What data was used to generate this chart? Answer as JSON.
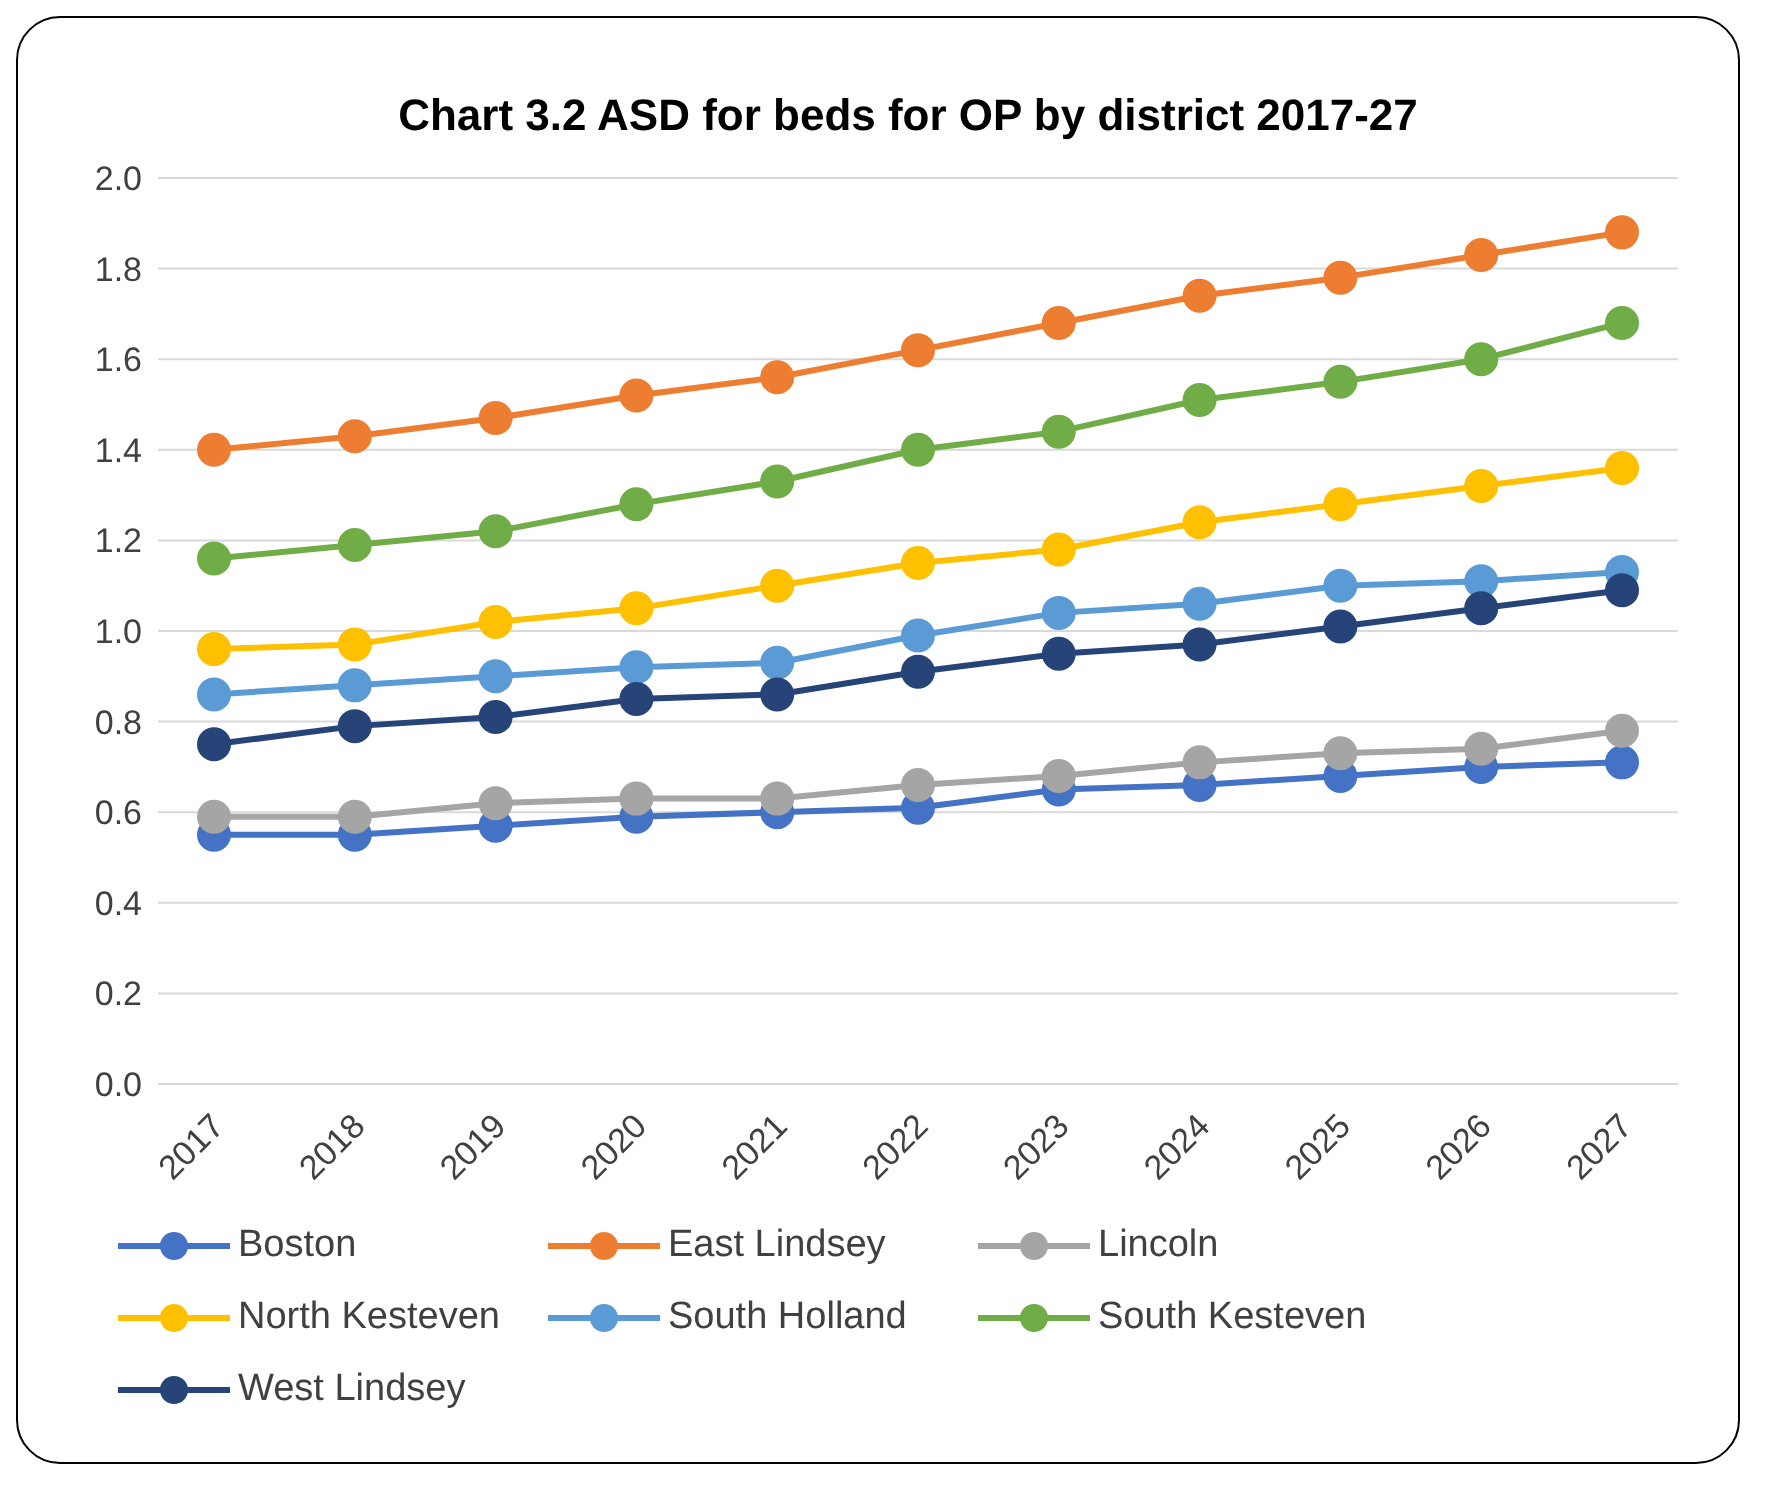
{
  "chart_data": {
    "type": "line",
    "title": "Chart 3.2 ASD for beds for OP by district 2017-27",
    "categories": [
      "2017",
      "2018",
      "2019",
      "2020",
      "2021",
      "2022",
      "2023",
      "2024",
      "2025",
      "2026",
      "2027"
    ],
    "series": [
      {
        "name": "Boston",
        "color": "#4472c4",
        "values": [
          0.55,
          0.55,
          0.57,
          0.59,
          0.6,
          0.61,
          0.65,
          0.66,
          0.68,
          0.7,
          0.71
        ]
      },
      {
        "name": "East Lindsey",
        "color": "#ed7d31",
        "values": [
          1.4,
          1.43,
          1.47,
          1.52,
          1.56,
          1.62,
          1.68,
          1.74,
          1.78,
          1.83,
          1.88
        ]
      },
      {
        "name": "Lincoln",
        "color": "#a5a5a5",
        "values": [
          0.59,
          0.59,
          0.62,
          0.63,
          0.63,
          0.66,
          0.68,
          0.71,
          0.73,
          0.74,
          0.78
        ]
      },
      {
        "name": "North Kesteven",
        "color": "#ffc000",
        "values": [
          0.96,
          0.97,
          1.02,
          1.05,
          1.1,
          1.15,
          1.18,
          1.24,
          1.28,
          1.32,
          1.36
        ]
      },
      {
        "name": "South Holland",
        "color": "#5b9bd5",
        "values": [
          0.86,
          0.88,
          0.9,
          0.92,
          0.93,
          0.99,
          1.04,
          1.06,
          1.1,
          1.11,
          1.13
        ]
      },
      {
        "name": "South Kesteven",
        "color": "#70ad47",
        "values": [
          1.16,
          1.19,
          1.22,
          1.28,
          1.33,
          1.4,
          1.44,
          1.51,
          1.55,
          1.6,
          1.68
        ]
      },
      {
        "name": "West Lindsey",
        "color": "#264478",
        "values": [
          0.75,
          0.79,
          0.81,
          0.85,
          0.86,
          0.91,
          0.95,
          0.97,
          1.01,
          1.05,
          1.09
        ]
      }
    ],
    "ylim": [
      0,
      2
    ],
    "yticks": [
      {
        "value": 0,
        "label": "0.0"
      },
      {
        "value": 0.2,
        "label": "0.2"
      },
      {
        "value": 0.4,
        "label": "0.4"
      },
      {
        "value": 0.6,
        "label": "0.6"
      },
      {
        "value": 0.8,
        "label": "0.8"
      },
      {
        "value": 1,
        "label": "1.0"
      },
      {
        "value": 1.2,
        "label": "1.2"
      },
      {
        "value": 1.4,
        "label": "1.4"
      },
      {
        "value": 1.6,
        "label": "1.6"
      },
      {
        "value": 1.8,
        "label": "1.8"
      },
      {
        "value": 2,
        "label": "2.0"
      }
    ],
    "grid": "y",
    "legend": "bottom",
    "marker": "circle",
    "line_style": "solid"
  }
}
